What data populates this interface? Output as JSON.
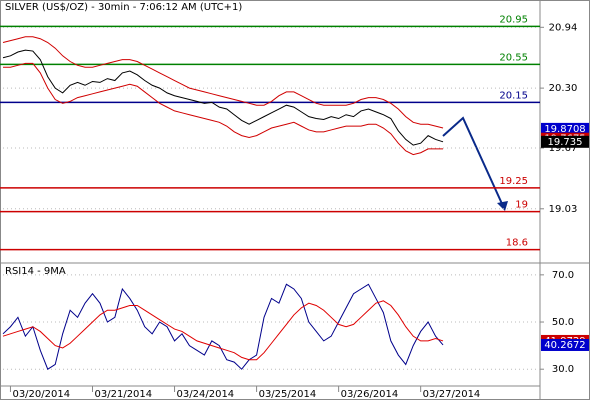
{
  "chart_data": [
    {
      "type": "line",
      "title": "SILVER (US$/OZ) - 30min - 7:06:12 AM (UTC+1)",
      "xlim": [
        0,
        72
      ],
      "ylim": [
        18.47,
        21.08
      ],
      "yticks": [
        20.94,
        {
          "value": 20.3,
          "label": "20.30"
        },
        19.67,
        19.03
      ],
      "levels": [
        {
          "value": 20.95,
          "color": "#008000"
        },
        {
          "value": 20.55,
          "color": "#008000"
        },
        {
          "value": 20.15,
          "color": "#00008b"
        },
        {
          "value": 19.25,
          "color": "#cc0000"
        },
        {
          "value": 19,
          "color": "#cc0000"
        },
        {
          "value": 18.6,
          "color": "#cc0000"
        }
      ],
      "series": [
        {
          "color": "#000000",
          "values": [
            20.62,
            20.64,
            20.68,
            20.7,
            20.69,
            20.6,
            20.42,
            20.3,
            20.25,
            20.33,
            20.36,
            20.33,
            20.37,
            20.36,
            20.4,
            20.38,
            20.46,
            20.48,
            20.44,
            20.38,
            20.33,
            20.3,
            20.25,
            20.22,
            20.2,
            20.18,
            20.16,
            20.14,
            20.15,
            20.1,
            20.08,
            20.02,
            19.96,
            19.92,
            19.96,
            20.0,
            20.04,
            20.08,
            20.12,
            20.1,
            20.05,
            20.0,
            19.98,
            19.97,
            20.0,
            19.98,
            20.02,
            20.0,
            20.06,
            20.08,
            20.05,
            20.02,
            19.98,
            19.85,
            19.76,
            19.7,
            19.72,
            19.8,
            19.76,
            19.735
          ]
        },
        {
          "color": "#d00000",
          "values": [
            20.78,
            20.8,
            20.82,
            20.84,
            20.84,
            20.82,
            20.78,
            20.72,
            20.64,
            20.58,
            20.54,
            20.52,
            20.52,
            20.54,
            20.56,
            20.58,
            20.6,
            20.6,
            20.58,
            20.54,
            20.5,
            20.46,
            20.42,
            20.38,
            20.34,
            20.3,
            20.28,
            20.26,
            20.24,
            20.22,
            20.2,
            20.18,
            20.16,
            20.14,
            20.12,
            20.12,
            20.16,
            20.22,
            20.26,
            20.26,
            20.22,
            20.18,
            20.14,
            20.12,
            20.12,
            20.12,
            20.12,
            20.14,
            20.18,
            20.2,
            20.2,
            20.18,
            20.14,
            20.08,
            20.0,
            19.94,
            19.92,
            19.92,
            19.9,
            19.88
          ]
        },
        {
          "color": "#d00000",
          "values": [
            20.52,
            20.52,
            20.54,
            20.56,
            20.56,
            20.46,
            20.3,
            20.18,
            20.14,
            20.16,
            20.2,
            20.22,
            20.24,
            20.26,
            20.28,
            20.3,
            20.32,
            20.34,
            20.32,
            20.26,
            20.2,
            20.14,
            20.1,
            20.06,
            20.04,
            20.02,
            20.0,
            19.98,
            19.96,
            19.94,
            19.9,
            19.84,
            19.8,
            19.78,
            19.8,
            19.84,
            19.88,
            19.9,
            19.92,
            19.94,
            19.9,
            19.86,
            19.84,
            19.84,
            19.86,
            19.88,
            19.9,
            19.9,
            19.9,
            19.92,
            19.92,
            19.88,
            19.82,
            19.72,
            19.64,
            19.6,
            19.62,
            19.66,
            19.66,
            19.66
          ]
        }
      ],
      "markers": [
        {
          "value": 19.8708,
          "color": "#0000cc"
        },
        {
          "value": 19.7675,
          "color": "#cc0000"
        },
        {
          "value": 19.735,
          "color": "#000000"
        }
      ]
    },
    {
      "type": "line",
      "title": "RSI14 - 9MA",
      "xlim": [
        0,
        72
      ],
      "ylim": [
        23.3,
        74.6
      ],
      "yticks": [
        {
          "value": 70,
          "label": "70.0"
        },
        {
          "value": 50,
          "label": "50.0"
        },
        {
          "value": 30,
          "label": "30.0"
        }
      ],
      "xticks": [
        {
          "value": 1,
          "label": "03/20/2014"
        },
        {
          "value": 12,
          "label": "03/21/2014"
        },
        {
          "value": 23,
          "label": "03/24/2014"
        },
        {
          "value": 34,
          "label": "03/25/2014"
        },
        {
          "value": 45,
          "label": "03/26/2014"
        },
        {
          "value": 56,
          "label": "03/27/2014"
        }
      ],
      "series": [
        {
          "color": "#00008b",
          "values": [
            45,
            48,
            52,
            44,
            48,
            38,
            30,
            32,
            45,
            55,
            52,
            58,
            62,
            58,
            50,
            52,
            64,
            60,
            55,
            48,
            45,
            50,
            48,
            42,
            45,
            40,
            38,
            36,
            42,
            40,
            34,
            33,
            30,
            34,
            36,
            52,
            60,
            58,
            66,
            64,
            60,
            50,
            46,
            42,
            44,
            50,
            56,
            62,
            64,
            66,
            60,
            54,
            42,
            36,
            32,
            40,
            46,
            50,
            44,
            40.2672
          ]
        },
        {
          "color": "#e00000",
          "values": [
            44,
            45,
            46,
            47,
            48,
            46,
            43,
            40,
            39,
            41,
            44,
            47,
            50,
            53,
            55,
            55,
            56,
            57,
            57,
            55,
            53,
            51,
            49,
            47,
            46,
            44,
            42,
            41,
            40,
            39,
            38,
            37,
            35,
            34,
            34,
            37,
            41,
            45,
            49,
            53,
            56,
            58,
            57,
            55,
            52,
            49,
            48,
            49,
            52,
            55,
            58,
            59,
            57,
            53,
            48,
            44,
            42,
            42,
            43,
            41.9729
          ]
        }
      ],
      "markers": [
        {
          "value": 41.9729,
          "color": "#cc0000"
        },
        {
          "value": 40.2672,
          "color": "#0000cc"
        }
      ]
    }
  ]
}
